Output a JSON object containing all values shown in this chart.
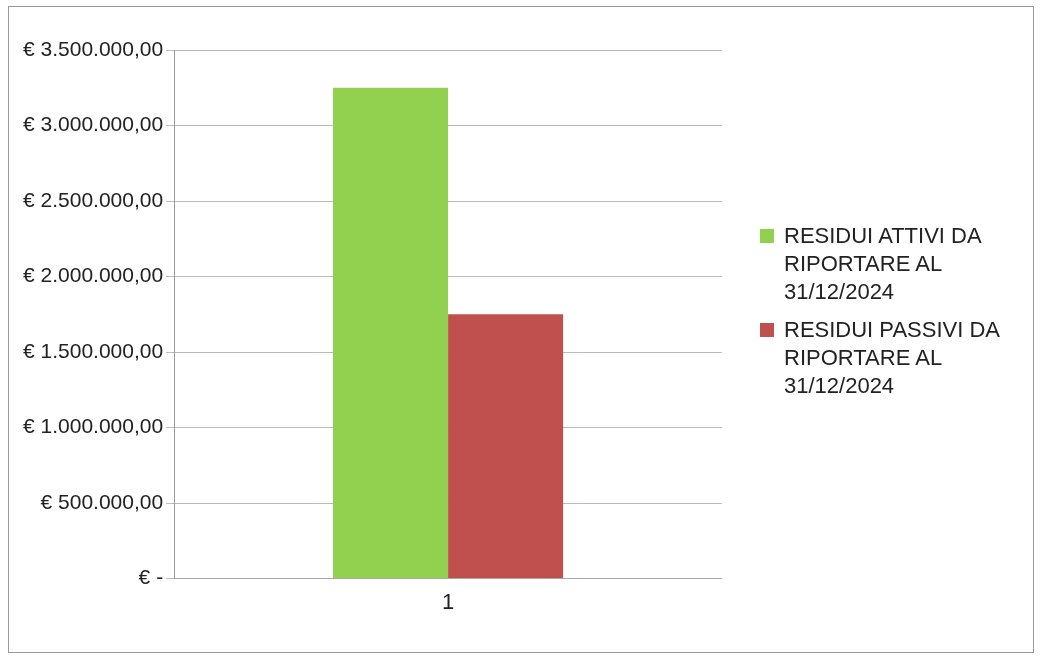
{
  "chart_data": {
    "type": "bar",
    "categories": [
      "1"
    ],
    "series": [
      {
        "name": "RESIDUI ATTIVI DA RIPORTARE AL 31/12/2024",
        "color": "#92d050",
        "values": [
          3250000
        ]
      },
      {
        "name": "RESIDUI PASSIVI DA RIPORTARE AL 31/12/2024",
        "color": "#c0504d",
        "values": [
          1750000
        ]
      }
    ],
    "ylim": [
      0,
      3500000
    ],
    "yticks": [
      {
        "value": 0,
        "label": "€ -"
      },
      {
        "value": 500000,
        "label": "€ 500.000,00"
      },
      {
        "value": 1000000,
        "label": "€ 1.000.000,00"
      },
      {
        "value": 1500000,
        "label": "€ 1.500.000,00"
      },
      {
        "value": 2000000,
        "label": "€ 2.000.000,00"
      },
      {
        "value": 2500000,
        "label": "€ 2.500.000,00"
      },
      {
        "value": 3000000,
        "label": "€ 3.000.000,00"
      },
      {
        "value": 3500000,
        "label": "€ 3.500.000,00"
      }
    ],
    "grid": "y",
    "legend": "right"
  }
}
